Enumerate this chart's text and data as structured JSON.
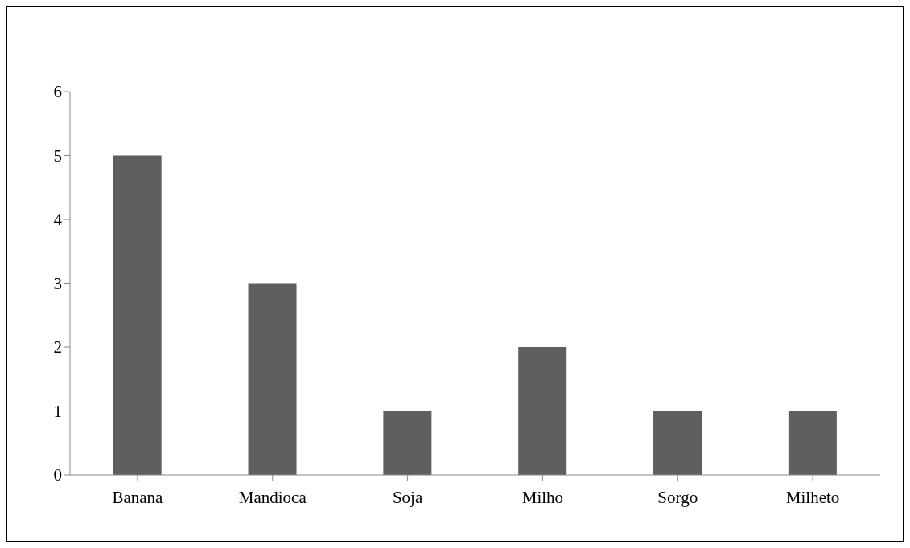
{
  "chart_data": {
    "type": "bar",
    "categories": [
      "Banana",
      "Mandioca",
      "Soja",
      "Milho",
      "Sorgo",
      "Milheto"
    ],
    "values": [
      5,
      3,
      1,
      2,
      1,
      1
    ],
    "color": "#5f5f5f",
    "ylim": [
      0,
      6
    ],
    "yticks": [
      0,
      1,
      2,
      3,
      4,
      5,
      6
    ],
    "grid": false,
    "legend": false
  }
}
